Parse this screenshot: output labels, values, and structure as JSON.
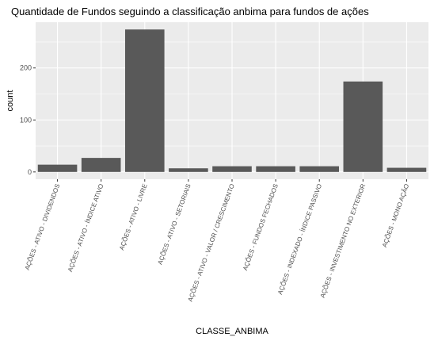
{
  "chart_data": {
    "type": "bar",
    "title": "Quantidade de Fundos seguindo a classificação anbima para fundos de ações",
    "xlabel": "CLASSE_ANBIMA",
    "ylabel": "count",
    "categories": [
      "AÇÕES - ATIVO - DIVIDENDOS",
      "AÇÕES - ATIVO - ÍNDICE ATIVO",
      "AÇÕES - ATIVO - LIVRE",
      "AÇÕES - ATIVO - SETORIAIS",
      "AÇÕES - ATIVO - VALOR / CRESCIMENTO",
      "AÇÕES - FUNDOS FECHADOS",
      "AÇÕES - INDEXADO - ÍNDICE PASSIVO",
      "AÇÕES - INVESTIMENTO NO EXTERIOR",
      "AÇÕES - MONO AÇÃO"
    ],
    "values": [
      14,
      27,
      274,
      7,
      11,
      11,
      11,
      174,
      8
    ],
    "ylim": [
      -14,
      288
    ],
    "yticks": [
      0,
      100,
      200
    ],
    "grid": true,
    "colors": {
      "panel": "#ebebeb",
      "grid_major": "#ffffff",
      "bar": "#595959"
    }
  }
}
